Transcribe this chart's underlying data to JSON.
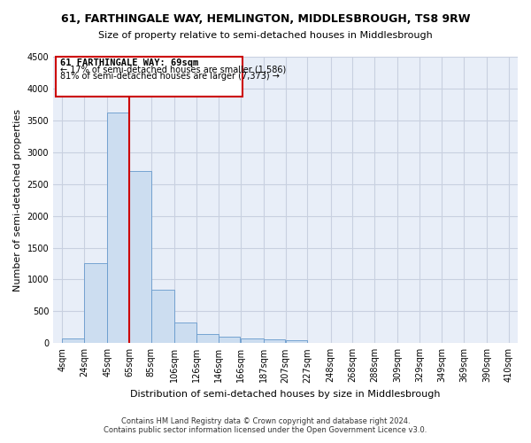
{
  "title": "61, FARTHINGALE WAY, HEMLINGTON, MIDDLESBROUGH, TS8 9RW",
  "subtitle": "Size of property relative to semi-detached houses in Middlesbrough",
  "xlabel": "Distribution of semi-detached houses by size in Middlesbrough",
  "ylabel": "Number of semi-detached properties",
  "bar_color": "#ccddf0",
  "bar_edge_color": "#6699cc",
  "grid_color": "#c8d0e0",
  "background_color": "#e8eef8",
  "annotation_box_color": "#cc0000",
  "vline_color": "#cc0000",
  "annotation_title": "61 FARTHINGALE WAY: 69sqm",
  "annotation_line1": "← 17% of semi-detached houses are smaller (1,586)",
  "annotation_line2": "81% of semi-detached houses are larger (7,373) →",
  "categories": [
    "4sqm",
    "24sqm",
    "45sqm",
    "65sqm",
    "85sqm",
    "106sqm",
    "126sqm",
    "146sqm",
    "166sqm",
    "187sqm",
    "207sqm",
    "227sqm",
    "248sqm",
    "268sqm",
    "288sqm",
    "309sqm",
    "329sqm",
    "349sqm",
    "369sqm",
    "390sqm",
    "410sqm"
  ],
  "bin_edges": [
    4,
    24,
    45,
    65,
    85,
    106,
    126,
    146,
    166,
    187,
    207,
    227,
    248,
    268,
    288,
    309,
    329,
    349,
    369,
    390,
    410
  ],
  "values": [
    80,
    1260,
    3620,
    2700,
    840,
    320,
    150,
    100,
    80,
    60,
    40,
    0,
    0,
    0,
    0,
    0,
    0,
    0,
    0,
    0
  ],
  "ylim": [
    0,
    4500
  ],
  "yticks": [
    0,
    500,
    1000,
    1500,
    2000,
    2500,
    3000,
    3500,
    4000,
    4500
  ],
  "vline_x": 65,
  "footer_line1": "Contains HM Land Registry data © Crown copyright and database right 2024.",
  "footer_line2": "Contains public sector information licensed under the Open Government Licence v3.0."
}
